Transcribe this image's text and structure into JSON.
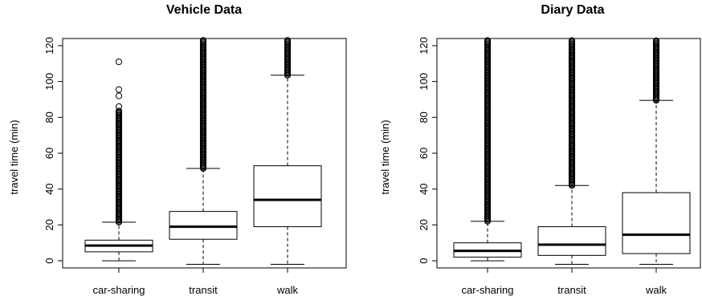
{
  "chart_data": [
    {
      "type": "box",
      "title": "Vehicle Data",
      "xlabel": "",
      "ylabel": "travel time (min)",
      "ylim": [
        -4,
        124
      ],
      "yticks": [
        0,
        20,
        40,
        60,
        80,
        100,
        120
      ],
      "categories": [
        "car-sharing",
        "transit",
        "walk"
      ],
      "boxes": [
        {
          "category": "car-sharing",
          "whisker_low": 0,
          "q1": 5,
          "median": 8.5,
          "q3": 11.5,
          "whisker_high": 21.5,
          "outliers_dense_from": 21.5,
          "outliers_dense_to": 84,
          "outliers": [
            86,
            92,
            95.5,
            111
          ]
        },
        {
          "category": "transit",
          "whisker_low": -2,
          "q1": 12,
          "median": 19,
          "q3": 27.5,
          "whisker_high": 51.5,
          "outliers_dense_from": 51.5,
          "outliers_dense_to": 124,
          "outliers": []
        },
        {
          "category": "walk",
          "whisker_low": -2,
          "q1": 19,
          "median": 34,
          "q3": 53,
          "whisker_high": 103.5,
          "outliers_dense_from": 103.5,
          "outliers_dense_to": 124,
          "outliers": []
        }
      ]
    },
    {
      "type": "box",
      "title": "Diary Data",
      "xlabel": "",
      "ylabel": "travel time (min)",
      "ylim": [
        -4,
        124
      ],
      "yticks": [
        0,
        20,
        40,
        60,
        80,
        100,
        120
      ],
      "categories": [
        "car-sharing",
        "transit",
        "walk"
      ],
      "boxes": [
        {
          "category": "car-sharing",
          "whisker_low": 0,
          "q1": 2,
          "median": 5.5,
          "q3": 10,
          "whisker_high": 22,
          "outliers_dense_from": 22,
          "outliers_dense_to": 124,
          "outliers": []
        },
        {
          "category": "transit",
          "whisker_low": -2,
          "q1": 3,
          "median": 9,
          "q3": 19,
          "whisker_high": 42,
          "outliers_dense_from": 42,
          "outliers_dense_to": 124,
          "outliers": []
        },
        {
          "category": "walk",
          "whisker_low": -2,
          "q1": 4,
          "median": 14.5,
          "q3": 38,
          "whisker_high": 89.5,
          "outliers_dense_from": 89.5,
          "outliers_dense_to": 124,
          "outliers": []
        }
      ]
    }
  ]
}
